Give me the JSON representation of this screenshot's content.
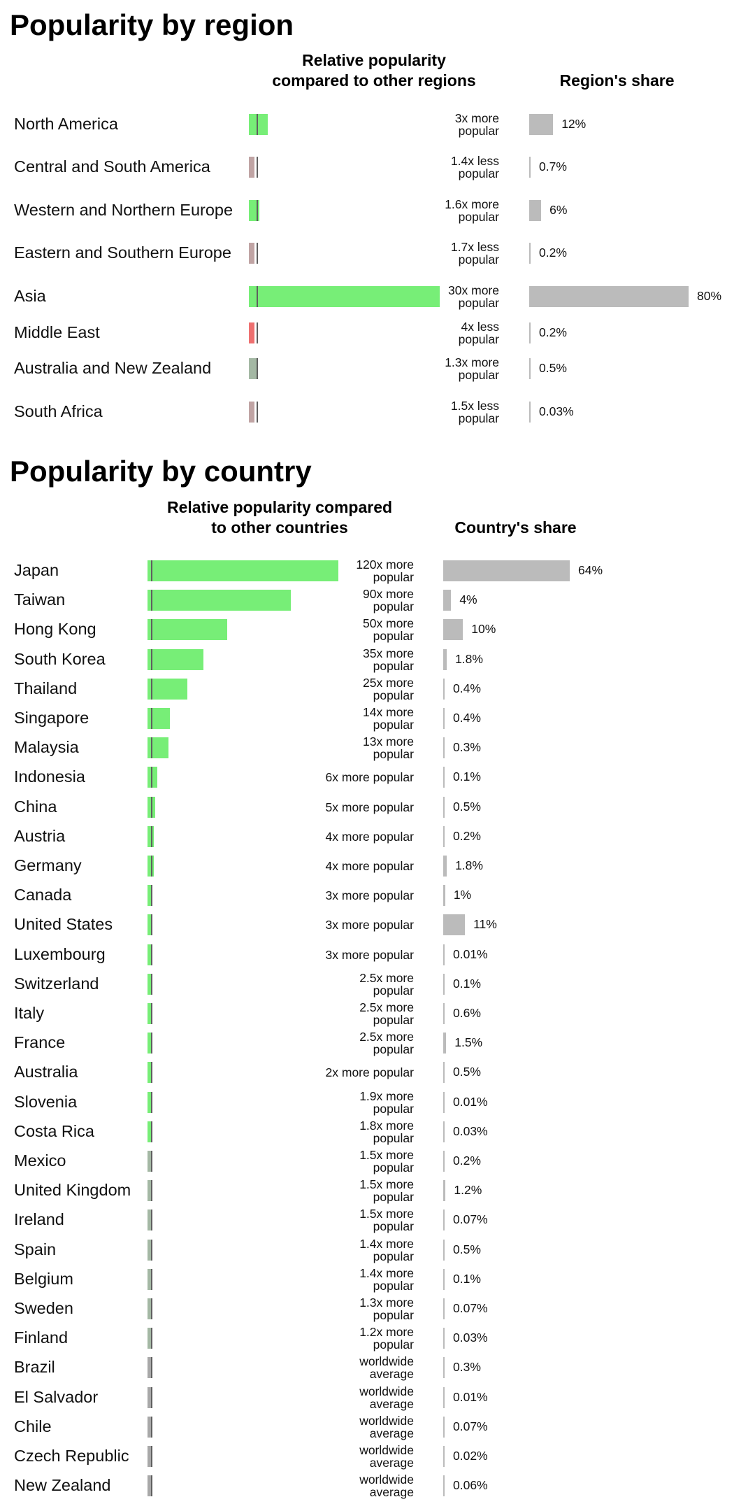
{
  "colors": {
    "more_popular": "#77ee77",
    "near_average_more": "#a4b8a4",
    "less_popular": "#c0a4a4",
    "much_less_popular": "#ee7070",
    "worldwide_average": "#a8a8a8",
    "share_bar": "#bbbbbb",
    "average_marker": "#5f5f5f"
  },
  "region": {
    "title": "Popularity by region",
    "popularity_heading": "Relative popularity compared to other regions",
    "share_heading": "Region's share"
  },
  "country": {
    "title": "Popularity by country",
    "popularity_heading": "Relative popularity compared to other countries",
    "share_heading": "Country's share"
  },
  "chart_data": [
    {
      "type": "bar",
      "title": "Popularity by region",
      "series": [
        {
          "name": "Relative popularity compared to other regions",
          "values": [
            3,
            0.714,
            1.6,
            0.588,
            30,
            0.25,
            1.3,
            0.667
          ]
        },
        {
          "name": "Region's share",
          "values": [
            12,
            0.7,
            6,
            0.2,
            80,
            0.2,
            0.5,
            0.03
          ]
        }
      ],
      "rows": [
        {
          "name": "North America",
          "popularity": "3x more popular",
          "popularity_factor": 3,
          "share_label": "12%",
          "share": 12
        },
        {
          "name": "Central and South America",
          "popularity": "1.4x less popular",
          "popularity_factor": 0.714,
          "share_label": "0.7%",
          "share": 0.7
        },
        {
          "name": "Western and Northern Europe",
          "popularity": "1.6x more popular",
          "popularity_factor": 1.6,
          "share_label": "6%",
          "share": 6
        },
        {
          "name": "Eastern and Southern Europe",
          "popularity": "1.7x less popular",
          "popularity_factor": 0.588,
          "share_label": "0.2%",
          "share": 0.2
        },
        {
          "name": "Asia",
          "popularity": "30x more popular",
          "popularity_factor": 30,
          "share_label": "80%",
          "share": 80
        },
        {
          "name": "Middle East",
          "popularity": "4x less popular",
          "popularity_factor": 0.25,
          "share_label": "0.2%",
          "share": 0.2
        },
        {
          "name": "Australia and New Zealand",
          "popularity": "1.3x more popular",
          "popularity_factor": 1.3,
          "share_label": "0.5%",
          "share": 0.5
        },
        {
          "name": "South Africa",
          "popularity": "1.5x less popular",
          "popularity_factor": 0.667,
          "share_label": "0.03%",
          "share": 0.03
        }
      ]
    },
    {
      "type": "bar",
      "title": "Popularity by country",
      "series": [
        {
          "name": "Relative popularity compared to other countries",
          "values": [
            120,
            90,
            50,
            35,
            25,
            14,
            13,
            6,
            5,
            4,
            4,
            3,
            3,
            3,
            2.5,
            2.5,
            2.5,
            2,
            1.9,
            1.8,
            1.5,
            1.5,
            1.5,
            1.4,
            1.4,
            1.3,
            1.2,
            1,
            1,
            1,
            1,
            1
          ]
        },
        {
          "name": "Country's share",
          "values": [
            64,
            4,
            10,
            1.8,
            0.4,
            0.4,
            0.3,
            0.1,
            0.5,
            0.2,
            1.8,
            1,
            11,
            0.01,
            0.1,
            0.6,
            1.5,
            0.5,
            0.01,
            0.03,
            0.2,
            1.2,
            0.07,
            0.5,
            0.1,
            0.07,
            0.03,
            0.3,
            0.01,
            0.07,
            0.02,
            0.06
          ]
        }
      ],
      "rows": [
        {
          "name": "Japan",
          "popularity": "120x more popular",
          "popularity_factor": 120,
          "share_label": "64%",
          "share": 64
        },
        {
          "name": "Taiwan",
          "popularity": "90x more popular",
          "popularity_factor": 90,
          "share_label": "4%",
          "share": 4
        },
        {
          "name": "Hong Kong",
          "popularity": "50x more popular",
          "popularity_factor": 50,
          "share_label": "10%",
          "share": 10
        },
        {
          "name": "South Korea",
          "popularity": "35x more popular",
          "popularity_factor": 35,
          "share_label": "1.8%",
          "share": 1.8
        },
        {
          "name": "Thailand",
          "popularity": "25x more popular",
          "popularity_factor": 25,
          "share_label": "0.4%",
          "share": 0.4
        },
        {
          "name": "Singapore",
          "popularity": "14x more popular",
          "popularity_factor": 14,
          "share_label": "0.4%",
          "share": 0.4
        },
        {
          "name": "Malaysia",
          "popularity": "13x more popular",
          "popularity_factor": 13,
          "share_label": "0.3%",
          "share": 0.3
        },
        {
          "name": "Indonesia",
          "popularity": "6x more popular",
          "popularity_factor": 6,
          "share_label": "0.1%",
          "share": 0.1
        },
        {
          "name": "China",
          "popularity": "5x more popular",
          "popularity_factor": 5,
          "share_label": "0.5%",
          "share": 0.5
        },
        {
          "name": "Austria",
          "popularity": "4x more popular",
          "popularity_factor": 4,
          "share_label": "0.2%",
          "share": 0.2
        },
        {
          "name": "Germany",
          "popularity": "4x more popular",
          "popularity_factor": 4,
          "share_label": "1.8%",
          "share": 1.8
        },
        {
          "name": "Canada",
          "popularity": "3x more popular",
          "popularity_factor": 3,
          "share_label": "1%",
          "share": 1
        },
        {
          "name": "United States",
          "popularity": "3x more popular",
          "popularity_factor": 3,
          "share_label": "11%",
          "share": 11
        },
        {
          "name": "Luxembourg",
          "popularity": "3x more popular",
          "popularity_factor": 3,
          "share_label": "0.01%",
          "share": 0.01
        },
        {
          "name": "Switzerland",
          "popularity": "2.5x more popular",
          "popularity_factor": 2.5,
          "share_label": "0.1%",
          "share": 0.1
        },
        {
          "name": "Italy",
          "popularity": "2.5x more popular",
          "popularity_factor": 2.5,
          "share_label": "0.6%",
          "share": 0.6
        },
        {
          "name": "France",
          "popularity": "2.5x more popular",
          "popularity_factor": 2.5,
          "share_label": "1.5%",
          "share": 1.5
        },
        {
          "name": "Australia",
          "popularity": "2x more popular",
          "popularity_factor": 2,
          "share_label": "0.5%",
          "share": 0.5
        },
        {
          "name": "Slovenia",
          "popularity": "1.9x more popular",
          "popularity_factor": 1.9,
          "share_label": "0.01%",
          "share": 0.01
        },
        {
          "name": "Costa Rica",
          "popularity": "1.8x more popular",
          "popularity_factor": 1.8,
          "share_label": "0.03%",
          "share": 0.03
        },
        {
          "name": "Mexico",
          "popularity": "1.5x more popular",
          "popularity_factor": 1.5,
          "share_label": "0.2%",
          "share": 0.2
        },
        {
          "name": "United Kingdom",
          "popularity": "1.5x more popular",
          "popularity_factor": 1.5,
          "share_label": "1.2%",
          "share": 1.2
        },
        {
          "name": "Ireland",
          "popularity": "1.5x more popular",
          "popularity_factor": 1.5,
          "share_label": "0.07%",
          "share": 0.07
        },
        {
          "name": "Spain",
          "popularity": "1.4x more popular",
          "popularity_factor": 1.4,
          "share_label": "0.5%",
          "share": 0.5
        },
        {
          "name": "Belgium",
          "popularity": "1.4x more popular",
          "popularity_factor": 1.4,
          "share_label": "0.1%",
          "share": 0.1
        },
        {
          "name": "Sweden",
          "popularity": "1.3x more popular",
          "popularity_factor": 1.3,
          "share_label": "0.07%",
          "share": 0.07
        },
        {
          "name": "Finland",
          "popularity": "1.2x more popular",
          "popularity_factor": 1.2,
          "share_label": "0.03%",
          "share": 0.03
        },
        {
          "name": "Brazil",
          "popularity": "worldwide average",
          "popularity_factor": 1,
          "share_label": "0.3%",
          "share": 0.3
        },
        {
          "name": "El Salvador",
          "popularity": "worldwide average",
          "popularity_factor": 1,
          "share_label": "0.01%",
          "share": 0.01
        },
        {
          "name": "Chile",
          "popularity": "worldwide average",
          "popularity_factor": 1,
          "share_label": "0.07%",
          "share": 0.07
        },
        {
          "name": "Czech Republic",
          "popularity": "worldwide average",
          "popularity_factor": 1,
          "share_label": "0.02%",
          "share": 0.02
        },
        {
          "name": "New Zealand",
          "popularity": "worldwide average",
          "popularity_factor": 1,
          "share_label": "0.06%",
          "share": 0.06
        }
      ]
    }
  ]
}
